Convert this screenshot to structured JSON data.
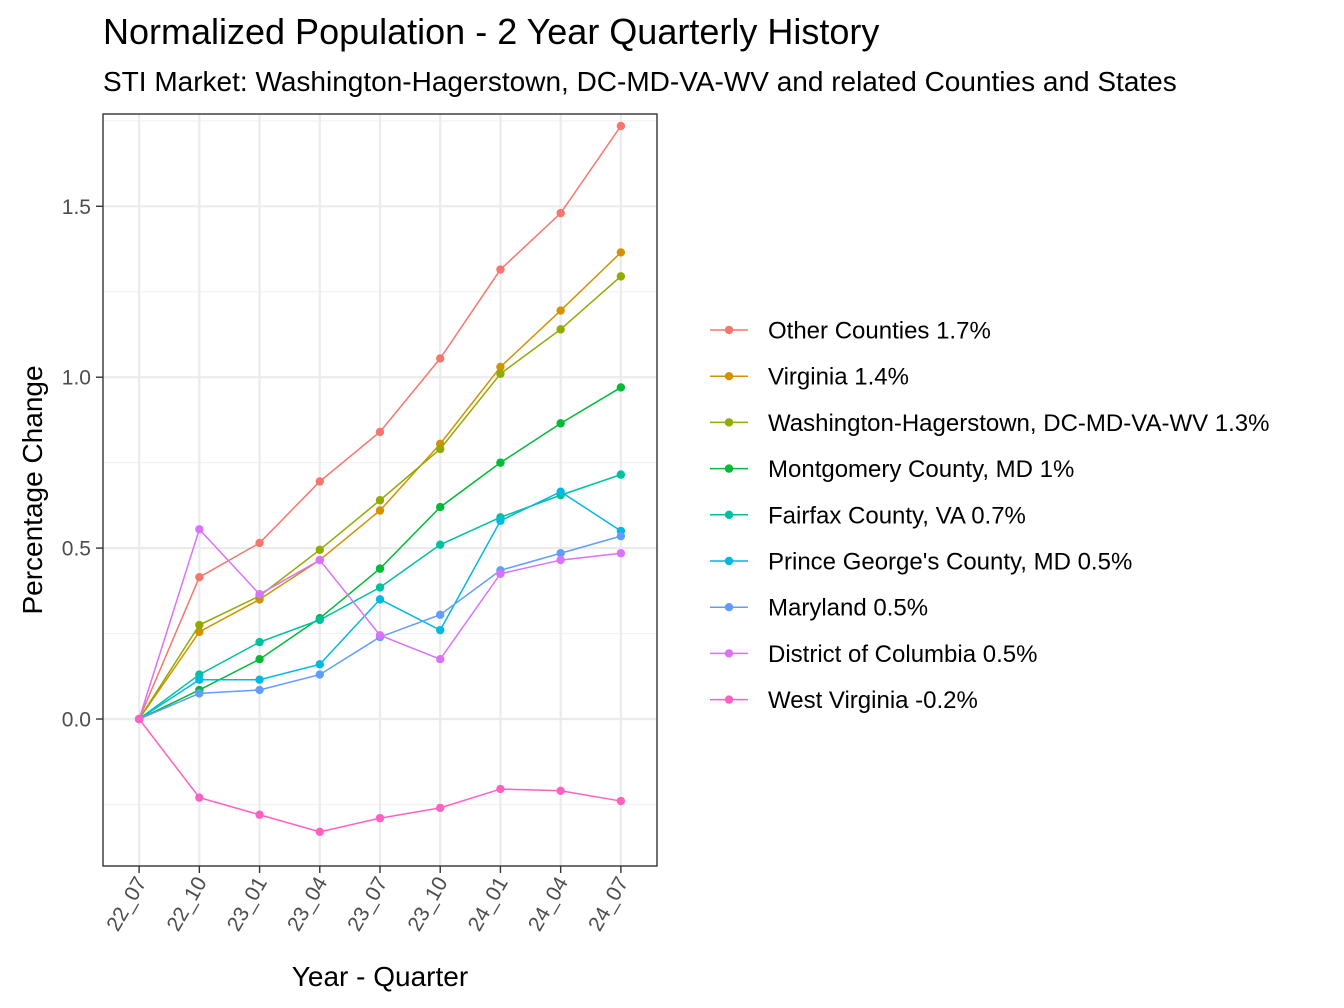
{
  "chart_data": {
    "type": "line",
    "title": "Normalized Population - 2 Year Quarterly History",
    "subtitle": "STI Market: Washington-Hagerstown, DC-MD-VA-WV and related Counties and States",
    "xlabel": "Year - Quarter",
    "ylabel": "Percentage Change",
    "categories": [
      "22_07",
      "22_10",
      "23_01",
      "23_04",
      "23_07",
      "23_10",
      "24_01",
      "24_04",
      "24_07"
    ],
    "ylim": [
      -0.43,
      1.77
    ],
    "yticks": [
      0.0,
      0.5,
      1.0,
      1.5
    ],
    "ytick_labels": [
      "0.0",
      "0.5",
      "1.0",
      "1.5"
    ],
    "grid": true,
    "legend_position": "right",
    "series": [
      {
        "name": "Other Counties 1.7%",
        "color": "#F8766D",
        "values": [
          0,
          0.415,
          0.515,
          0.695,
          0.84,
          1.055,
          1.315,
          1.48,
          1.735
        ]
      },
      {
        "name": "Virginia 1.4%",
        "color": "#D39200",
        "values": [
          0,
          0.255,
          0.35,
          0.465,
          0.61,
          0.805,
          1.03,
          1.195,
          1.365
        ]
      },
      {
        "name": "Washington-Hagerstown, DC-MD-VA-WV 1.3%",
        "color": "#93AA00",
        "values": [
          0,
          0.275,
          0.36,
          0.495,
          0.64,
          0.79,
          1.01,
          1.14,
          1.295
        ]
      },
      {
        "name": "Montgomery County, MD 1%",
        "color": "#00BA38",
        "values": [
          0,
          0.085,
          0.175,
          0.295,
          0.44,
          0.62,
          0.75,
          0.865,
          0.97
        ]
      },
      {
        "name": "Fairfax County, VA 0.7%",
        "color": "#00C19F",
        "values": [
          0,
          0.13,
          0.225,
          0.29,
          0.385,
          0.51,
          0.59,
          0.655,
          0.715
        ]
      },
      {
        "name": "Prince George's County, MD 0.5%",
        "color": "#00B9E3",
        "values": [
          0,
          0.115,
          0.115,
          0.16,
          0.35,
          0.26,
          0.58,
          0.665,
          0.55
        ]
      },
      {
        "name": "Maryland 0.5%",
        "color": "#619CFF",
        "values": [
          0,
          0.075,
          0.085,
          0.13,
          0.24,
          0.305,
          0.435,
          0.485,
          0.535
        ]
      },
      {
        "name": "District of Columbia 0.5%",
        "color": "#DB72FB",
        "values": [
          0,
          0.555,
          0.365,
          0.465,
          0.245,
          0.175,
          0.425,
          0.465,
          0.485
        ]
      },
      {
        "name": "West Virginia -0.2%",
        "color": "#FF61C3",
        "values": [
          0,
          -0.23,
          -0.28,
          -0.33,
          -0.29,
          -0.26,
          -0.205,
          -0.21,
          -0.24
        ]
      }
    ]
  }
}
